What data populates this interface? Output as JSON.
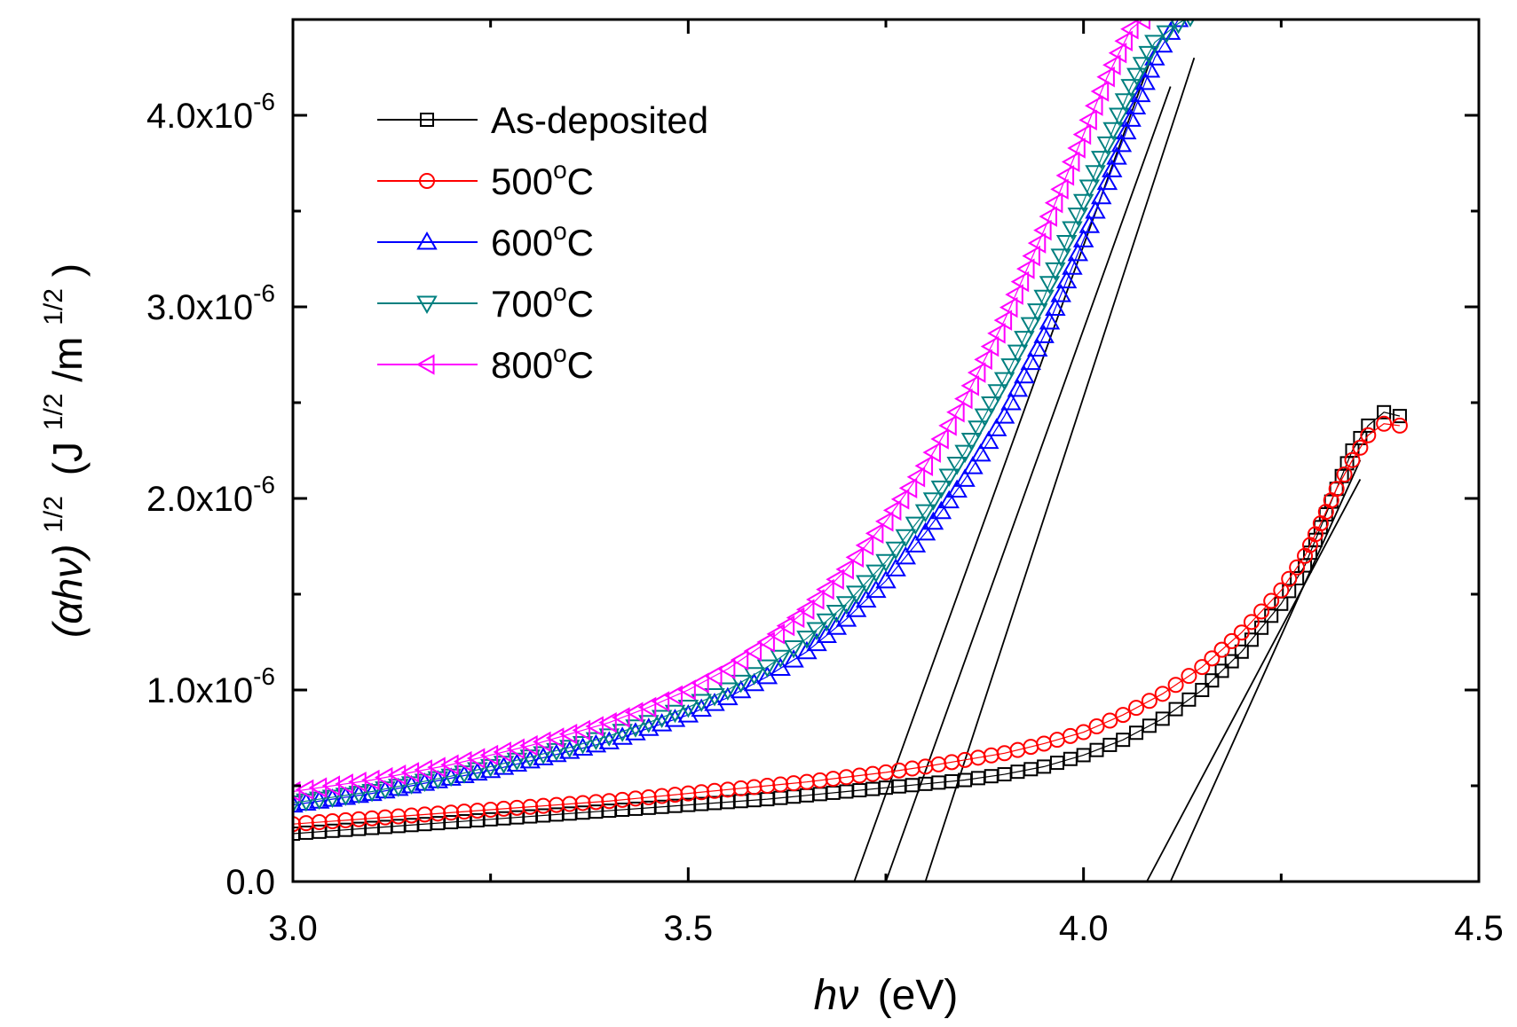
{
  "chart_data": {
    "type": "scatter",
    "title": "",
    "xlabel": {
      "var": "hν",
      "unit": "(eV)"
    },
    "ylabel": {
      "base": "(αhν)",
      "exp": "1/2",
      "unit_open": "(J",
      "unit_exp": "1/2",
      "unit_mid": "/m",
      "unit_exp2": "1/2",
      "unit_close": ")"
    },
    "xlim": [
      3.0,
      4.5
    ],
    "ylim": [
      0,
      4.5e-06
    ],
    "xticks": [
      {
        "value": 3.0,
        "label": "3.0"
      },
      {
        "value": 3.5,
        "label": "3.5"
      },
      {
        "value": 4.0,
        "label": "4.0"
      },
      {
        "value": 4.5,
        "label": "4.5"
      }
    ],
    "yticks": [
      {
        "value": 0,
        "mant": "0.0",
        "exp": ""
      },
      {
        "value": 1e-06,
        "mant": "1.0x10",
        "exp": "-6"
      },
      {
        "value": 2e-06,
        "mant": "2.0x10",
        "exp": "-6"
      },
      {
        "value": 3e-06,
        "mant": "3.0x10",
        "exp": "-6"
      },
      {
        "value": 4e-06,
        "mant": "4.0x10",
        "exp": "-6"
      }
    ],
    "legend_position": "top-left",
    "series": [
      {
        "name": "As-deposited",
        "label_main": "As-deposited",
        "label_sup": "",
        "label_suffix": "",
        "color": "#000000",
        "marker": "square",
        "x": [
          3.0,
          3.05,
          3.1,
          3.15,
          3.2,
          3.25,
          3.3,
          3.35,
          3.4,
          3.45,
          3.5,
          3.55,
          3.6,
          3.65,
          3.7,
          3.75,
          3.8,
          3.85,
          3.9,
          3.95,
          4.0,
          4.05,
          4.1,
          4.15,
          4.2,
          4.25,
          4.28,
          4.3,
          4.32,
          4.34,
          4.36,
          4.38,
          4.4
        ],
        "y": [
          2.5e-07,
          2.65e-07,
          2.8e-07,
          2.95e-07,
          3.1e-07,
          3.25e-07,
          3.4e-07,
          3.55e-07,
          3.7e-07,
          3.85e-07,
          4e-07,
          4.15e-07,
          4.3e-07,
          4.5e-07,
          4.7e-07,
          4.9e-07,
          5.1e-07,
          5.3e-07,
          5.6e-07,
          6e-07,
          6.6e-07,
          7.4e-07,
          8.5e-07,
          1e-06,
          1.2e-06,
          1.45e-06,
          1.65e-06,
          1.85e-06,
          2.05e-06,
          2.25e-06,
          2.38e-06,
          2.45e-06,
          2.43e-06
        ]
      },
      {
        "name": "500°C",
        "label_main": "500",
        "label_sup": "o",
        "label_suffix": "C",
        "color": "#ff0000",
        "marker": "circle",
        "x": [
          3.0,
          3.05,
          3.1,
          3.15,
          3.2,
          3.25,
          3.3,
          3.35,
          3.4,
          3.45,
          3.5,
          3.55,
          3.6,
          3.65,
          3.7,
          3.75,
          3.8,
          3.85,
          3.9,
          3.95,
          4.0,
          4.05,
          4.1,
          4.15,
          4.2,
          4.25,
          4.28,
          4.3,
          4.32,
          4.34,
          4.36,
          4.38,
          4.4
        ],
        "y": [
          3e-07,
          3.15e-07,
          3.3e-07,
          3.45e-07,
          3.6e-07,
          3.75e-07,
          3.9e-07,
          4.05e-07,
          4.2e-07,
          4.4e-07,
          4.6e-07,
          4.8e-07,
          5e-07,
          5.2e-07,
          5.45e-07,
          5.7e-07,
          6e-07,
          6.35e-07,
          6.7e-07,
          7.2e-07,
          7.8e-07,
          8.7e-07,
          9.8e-07,
          1.12e-06,
          1.3e-06,
          1.52e-06,
          1.7e-06,
          1.87e-06,
          2.05e-06,
          2.2e-06,
          2.33e-06,
          2.39e-06,
          2.38e-06
        ]
      },
      {
        "name": "600°C",
        "label_main": "600",
        "label_sup": "o",
        "label_suffix": "C",
        "color": "#0000ff",
        "marker": "triangle-up",
        "x": [
          3.0,
          3.05,
          3.1,
          3.15,
          3.2,
          3.25,
          3.3,
          3.35,
          3.4,
          3.45,
          3.5,
          3.55,
          3.6,
          3.65,
          3.7,
          3.75,
          3.8,
          3.85,
          3.9,
          3.95,
          4.0,
          4.03,
          4.06,
          4.09,
          4.12
        ],
        "y": [
          4e-07,
          4.3e-07,
          4.6e-07,
          5e-07,
          5.4e-07,
          5.8e-07,
          6.3e-07,
          6.8e-07,
          7.3e-07,
          8e-07,
          8.7e-07,
          9.6e-07,
          1.07e-06,
          1.2e-06,
          1.37e-06,
          1.57e-06,
          1.82e-06,
          2.1e-06,
          2.43e-06,
          2.85e-06,
          3.35e-06,
          3.65e-06,
          3.98e-06,
          4.3e-06,
          4.5e-06
        ]
      },
      {
        "name": "700°C",
        "label_main": "700",
        "label_sup": "o",
        "label_suffix": "C",
        "color": "#008080",
        "marker": "triangle-down",
        "x": [
          3.0,
          3.05,
          3.1,
          3.15,
          3.2,
          3.25,
          3.3,
          3.35,
          3.4,
          3.45,
          3.5,
          3.55,
          3.6,
          3.65,
          3.7,
          3.75,
          3.8,
          3.85,
          3.9,
          3.95,
          4.0,
          4.03,
          4.06,
          4.09,
          4.12,
          4.15
        ],
        "y": [
          4.1e-07,
          4.4e-07,
          4.7e-07,
          5.1e-07,
          5.5e-07,
          6e-07,
          6.5e-07,
          7e-07,
          7.6e-07,
          8.3e-07,
          9.1e-07,
          1e-06,
          1.12e-06,
          1.27e-06,
          1.45e-06,
          1.67e-06,
          1.93e-06,
          2.24e-06,
          2.62e-06,
          3.05e-06,
          3.55e-06,
          3.85e-06,
          4.15e-06,
          4.38e-06,
          4.48e-06,
          4.55e-06
        ]
      },
      {
        "name": "800°C",
        "label_main": "800",
        "label_sup": "o",
        "label_suffix": "C",
        "color": "#ff00ff",
        "marker": "triangle-left",
        "x": [
          3.0,
          3.05,
          3.1,
          3.15,
          3.2,
          3.25,
          3.3,
          3.35,
          3.4,
          3.45,
          3.5,
          3.55,
          3.6,
          3.65,
          3.7,
          3.75,
          3.8,
          3.85,
          3.9,
          3.95,
          4.0,
          4.03,
          4.06,
          4.09
        ],
        "y": [
          4.7e-07,
          5e-07,
          5.3e-07,
          5.7e-07,
          6.1e-07,
          6.6e-07,
          7.1e-07,
          7.7e-07,
          8.3e-07,
          9.1e-07,
          1e-06,
          1.11e-06,
          1.25e-06,
          1.42e-06,
          1.63e-06,
          1.88e-06,
          2.17e-06,
          2.52e-06,
          2.93e-06,
          3.4e-06,
          3.9e-06,
          4.2e-06,
          4.45e-06,
          4.55e-06
        ]
      }
    ],
    "fit_lines": [
      {
        "name": "fit-800C",
        "x": [
          3.71,
          4.09
        ],
        "y": [
          0,
          4.35e-06
        ]
      },
      {
        "name": "fit-700C",
        "x": [
          3.75,
          4.11
        ],
        "y": [
          0,
          4.15e-06
        ]
      },
      {
        "name": "fit-600C",
        "x": [
          3.8,
          4.14
        ],
        "y": [
          0,
          4.3e-06
        ]
      },
      {
        "name": "fit-500C",
        "x": [
          4.08,
          4.35
        ],
        "y": [
          0,
          2.1e-06
        ]
      },
      {
        "name": "fit-as-deposited",
        "x": [
          4.11,
          4.35
        ],
        "y": [
          0,
          2.2e-06
        ]
      }
    ]
  }
}
